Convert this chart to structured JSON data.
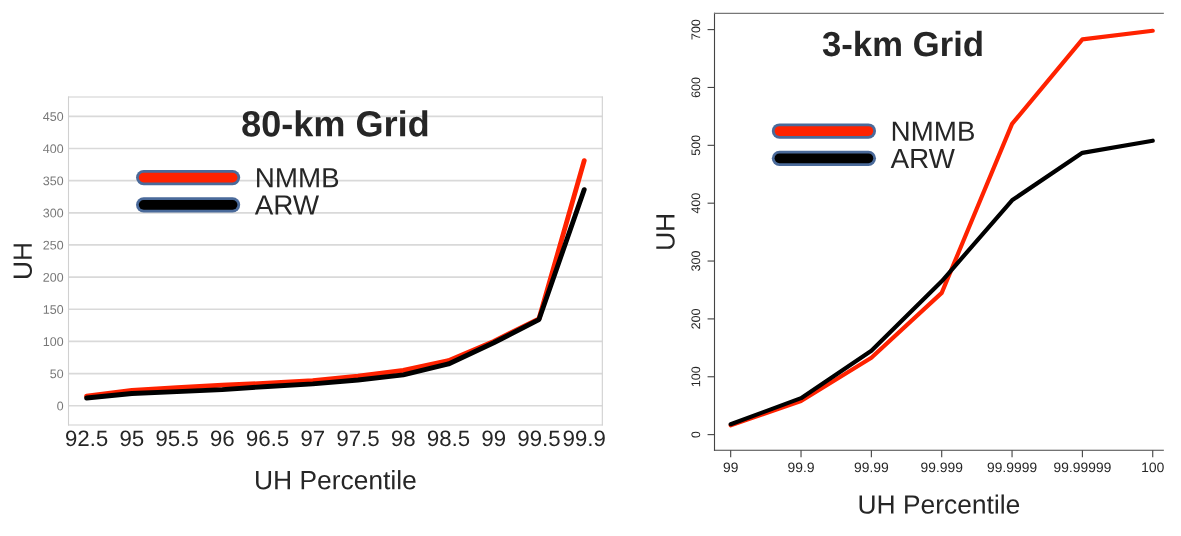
{
  "chart_data": [
    {
      "type": "line",
      "title": "80-km Grid",
      "xlabel": "UH Percentile",
      "ylabel": "UH",
      "categories": [
        "92.5",
        "95",
        "95.5",
        "96",
        "96.5",
        "97",
        "97.5",
        "98",
        "98.5",
        "99",
        "99.5",
        "99.9"
      ],
      "series": [
        {
          "name": "NMMB",
          "color": "#ff2200",
          "values": [
            15,
            24,
            28,
            32,
            35,
            39,
            46,
            55,
            70,
            100,
            135,
            381
          ]
        },
        {
          "name": "ARW",
          "color": "#000000",
          "values": [
            12,
            19,
            22,
            25,
            30,
            34,
            40,
            48,
            65,
            98,
            134,
            336
          ]
        }
      ],
      "ylim": [
        -30,
        480
      ],
      "yticks": [
        0,
        50,
        100,
        150,
        200,
        250,
        300,
        350,
        400,
        450
      ],
      "grid": "y",
      "legend": "top left",
      "marker": "none",
      "line_style": "solid"
    },
    {
      "type": "line",
      "title": "3-km Grid",
      "xlabel": "UH Percentile",
      "ylabel": "UH",
      "categories": [
        "99",
        "99.9",
        "99.99",
        "99.999",
        "99.9999",
        "99.99999",
        "100"
      ],
      "series": [
        {
          "name": "NMMB",
          "color": "#ff2200",
          "values": [
            16,
            58,
            133,
            245,
            537,
            683,
            698
          ]
        },
        {
          "name": "ARW",
          "color": "#000000",
          "values": [
            18,
            63,
            145,
            265,
            405,
            487,
            508
          ]
        }
      ],
      "ylim": [
        -27,
        728
      ],
      "yticks": [
        0,
        100,
        200,
        300,
        400,
        500,
        600,
        700
      ],
      "grid": false,
      "legend": "top left",
      "marker": "none",
      "line_style": "solid"
    }
  ]
}
